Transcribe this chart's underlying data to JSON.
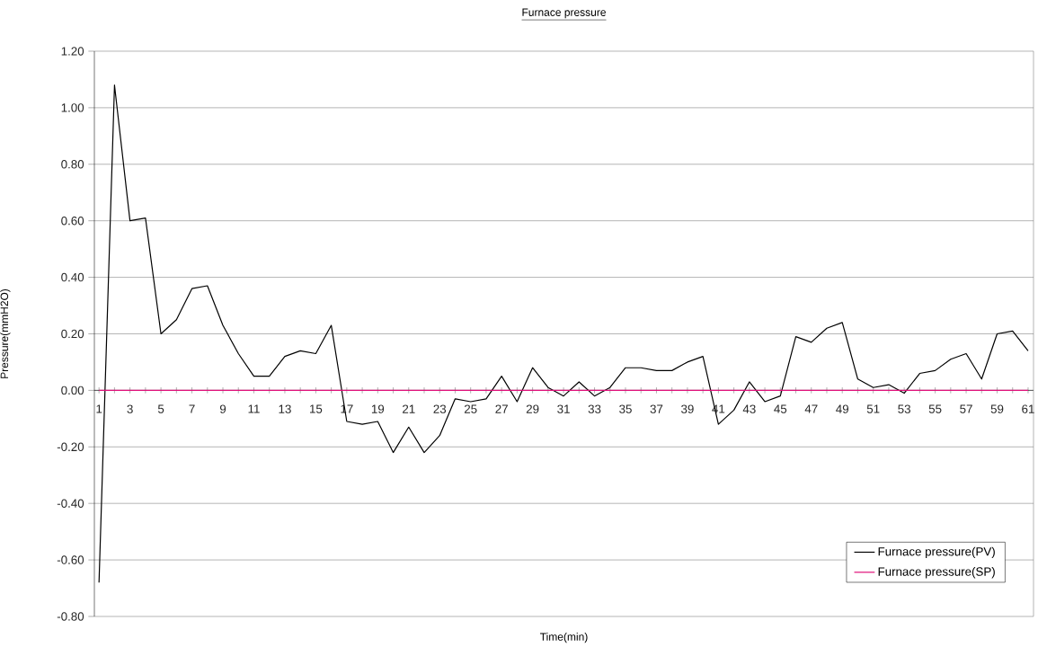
{
  "chart_data": {
    "type": "line",
    "title": "Furnace pressure",
    "xlabel": "Time(min)",
    "ylabel": "Pressure(mmH2O)",
    "categories": [
      "1",
      null,
      "3",
      null,
      "5",
      null,
      "7",
      null,
      "9",
      null,
      "11",
      null,
      "13",
      null,
      "15",
      null,
      "17",
      null,
      "19",
      null,
      "21",
      null,
      "23",
      null,
      "25",
      null,
      "27",
      null,
      "29",
      null,
      "31",
      null,
      "33",
      null,
      "35",
      null,
      "37",
      null,
      "39",
      null,
      "41",
      null,
      "43",
      null,
      "45",
      null,
      "47",
      null,
      "49",
      null,
      "51",
      null,
      "53",
      null,
      "55",
      null,
      "57",
      null,
      "59",
      null,
      "61"
    ],
    "series": [
      {
        "name": "Furnace pressure(PV)",
        "color": "#000000",
        "values": [
          -0.68,
          1.08,
          0.6,
          0.61,
          0.2,
          0.25,
          0.36,
          0.37,
          0.23,
          0.13,
          0.05,
          0.05,
          0.12,
          0.14,
          0.13,
          0.23,
          -0.11,
          -0.12,
          -0.11,
          -0.22,
          -0.13,
          -0.22,
          -0.16,
          -0.03,
          -0.04,
          -0.03,
          0.05,
          -0.04,
          0.08,
          0.01,
          -0.02,
          0.03,
          -0.02,
          0.01,
          0.08,
          0.08,
          0.07,
          0.07,
          0.1,
          0.12,
          -0.12,
          -0.07,
          0.03,
          -0.04,
          -0.02,
          0.19,
          0.17,
          0.22,
          0.24,
          0.04,
          0.01,
          0.02,
          -0.01,
          0.06,
          0.07,
          0.11,
          0.13,
          0.04,
          0.2,
          0.21,
          0.14
        ]
      },
      {
        "name": "Furnace pressure(SP)",
        "color": "#e0107a",
        "values": [
          0,
          0,
          0,
          0,
          0,
          0,
          0,
          0,
          0,
          0,
          0,
          0,
          0,
          0,
          0,
          0,
          0,
          0,
          0,
          0,
          0,
          0,
          0,
          0,
          0,
          0,
          0,
          0,
          0,
          0,
          0,
          0,
          0,
          0,
          0,
          0,
          0,
          0,
          0,
          0,
          0,
          0,
          0,
          0,
          0,
          0,
          0,
          0,
          0,
          0,
          0,
          0,
          0,
          0,
          0,
          0,
          0,
          0,
          0,
          0,
          0
        ]
      }
    ],
    "ylim": [
      -0.8,
      1.2
    ],
    "yticks": [
      {
        "value": -0.8,
        "label": "-0.80"
      },
      {
        "value": -0.6,
        "label": "-0.60"
      },
      {
        "value": -0.4,
        "label": "-0.40"
      },
      {
        "value": -0.2,
        "label": "-0.20"
      },
      {
        "value": 0,
        "label": "0.00"
      },
      {
        "value": 0.2,
        "label": "0.20"
      },
      {
        "value": 0.4,
        "label": "0.40"
      },
      {
        "value": 0.6,
        "label": "0.60"
      },
      {
        "value": 0.8,
        "label": "0.80"
      },
      {
        "value": 1.0,
        "label": "1.00"
      },
      {
        "value": 1.2,
        "label": "1.20"
      }
    ],
    "grid": "y",
    "legend": "bottom right",
    "marker": "none",
    "line_style": "solid"
  }
}
